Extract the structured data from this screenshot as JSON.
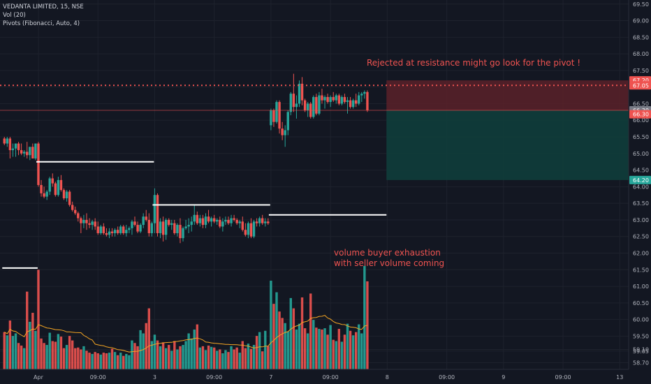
{
  "legend": {
    "symbol_line": "VEDANTA LIMITED, 15, NSE",
    "volume_line": "Vol (20)",
    "pivots_line": "Pivots (Fibonacci, Auto, 4)"
  },
  "annotations": [
    {
      "text": "Rejected at resistance might go look for the pivot !",
      "color": "#f05350"
    },
    {
      "text": "volume buyer exhaustion",
      "color": "#f05350"
    },
    {
      "text": "with seller volume coming",
      "color": "#f05350"
    }
  ],
  "colors": {
    "background": "#131722",
    "grid": "#1e222d",
    "up": "#26a69a",
    "down": "#ef5350",
    "ma": "#f5a623",
    "pivot": "#ffffff",
    "stop_zone": "#5b2129",
    "target_zone": "#0f3d3b"
  },
  "price_axis": {
    "min": 58.5,
    "max": 69.6,
    "ticks": [
      "69.50",
      "69.00",
      "68.50",
      "68.00",
      "67.50",
      "67.00",
      "66.50",
      "66.00",
      "65.50",
      "65.00",
      "64.50",
      "64.00",
      "63.50",
      "63.00",
      "62.50",
      "62.00",
      "61.50",
      "61.00",
      "60.50",
      "60.00",
      "59.50",
      "59.10",
      "59.05",
      "58.70"
    ],
    "badges": [
      {
        "label": "67.20",
        "value": 67.2,
        "color": "#ef5350"
      },
      {
        "label": "67.05",
        "value": 67.05,
        "color": "#ef5350"
      },
      {
        "label": "66.30",
        "value": 66.3,
        "color": "#787b86"
      },
      {
        "label": "66.30",
        "value": 66.18,
        "color": "#ef5350"
      },
      {
        "label": "64.20",
        "value": 64.2,
        "color": "#26a69a"
      }
    ]
  },
  "time_axis": {
    "labels": [
      {
        "label": "Apr",
        "bar": 12
      },
      {
        "label": "09:00",
        "bar": 33
      },
      {
        "label": "3",
        "bar": 53
      },
      {
        "label": "09:00",
        "bar": 74
      },
      {
        "label": "7",
        "bar": 94
      },
      {
        "label": "09:00",
        "bar": 115
      },
      {
        "label": "8",
        "bar": 135
      },
      {
        "label": "09:00",
        "bar": 156
      },
      {
        "label": "9",
        "bar": 176
      },
      {
        "label": "09:00",
        "bar": 197
      },
      {
        "label": "13",
        "bar": 217
      }
    ]
  },
  "chart_data": {
    "type": "candlestick",
    "title": "VEDANTA LIMITED, 15, NSE",
    "ylim": [
      58.5,
      69.6
    ],
    "resistance_line": 67.05,
    "current_price": 66.3,
    "pivot_levels": [
      {
        "value": 61.55,
        "from_bar": 0,
        "to_bar": 11
      },
      {
        "value": 64.75,
        "from_bar": 12,
        "to_bar": 52
      },
      {
        "value": 63.45,
        "from_bar": 53,
        "to_bar": 93
      },
      {
        "value": 63.15,
        "from_bar": 94,
        "to_bar": 134
      }
    ],
    "position": {
      "entry": 66.3,
      "stop": 67.2,
      "target": 64.2,
      "from_bar": 134,
      "to_bar": 221
    },
    "candles": [
      {
        "o": 65.45,
        "h": 65.5,
        "l": 65.25,
        "c": 65.3,
        "v": 58
      },
      {
        "o": 65.3,
        "h": 65.5,
        "l": 65.2,
        "c": 65.45,
        "v": 53
      },
      {
        "o": 65.45,
        "h": 65.5,
        "l": 64.85,
        "c": 65.1,
        "v": 76
      },
      {
        "o": 65.1,
        "h": 65.3,
        "l": 64.9,
        "c": 65.15,
        "v": 52
      },
      {
        "o": 65.15,
        "h": 65.3,
        "l": 64.9,
        "c": 65.3,
        "v": 56
      },
      {
        "o": 65.3,
        "h": 65.35,
        "l": 64.95,
        "c": 65.1,
        "v": 41
      },
      {
        "o": 65.1,
        "h": 65.3,
        "l": 64.95,
        "c": 65.0,
        "v": 37
      },
      {
        "o": 65.0,
        "h": 65.1,
        "l": 64.9,
        "c": 65.05,
        "v": 33
      },
      {
        "o": 65.05,
        "h": 65.35,
        "l": 64.85,
        "c": 64.95,
        "v": 121
      },
      {
        "o": 64.95,
        "h": 65.15,
        "l": 64.8,
        "c": 65.2,
        "v": 74
      },
      {
        "o": 65.2,
        "h": 65.3,
        "l": 64.85,
        "c": 64.85,
        "v": 88
      },
      {
        "o": 64.85,
        "h": 65.3,
        "l": 64.8,
        "c": 65.3,
        "v": 60
      },
      {
        "o": 65.3,
        "h": 65.35,
        "l": 64.0,
        "c": 64.05,
        "v": 155
      },
      {
        "o": 64.05,
        "h": 64.2,
        "l": 63.7,
        "c": 63.8,
        "v": 48
      },
      {
        "o": 63.8,
        "h": 64.0,
        "l": 63.65,
        "c": 63.7,
        "v": 41
      },
      {
        "o": 63.7,
        "h": 63.9,
        "l": 63.6,
        "c": 63.85,
        "v": 38
      },
      {
        "o": 63.85,
        "h": 64.3,
        "l": 63.75,
        "c": 64.25,
        "v": 57
      },
      {
        "o": 64.25,
        "h": 64.4,
        "l": 64.0,
        "c": 64.1,
        "v": 44
      },
      {
        "o": 64.1,
        "h": 64.15,
        "l": 63.7,
        "c": 63.75,
        "v": 43
      },
      {
        "o": 63.75,
        "h": 64.3,
        "l": 63.7,
        "c": 64.2,
        "v": 55
      },
      {
        "o": 64.2,
        "h": 64.35,
        "l": 63.85,
        "c": 63.9,
        "v": 51
      },
      {
        "o": 63.9,
        "h": 63.95,
        "l": 63.6,
        "c": 63.65,
        "v": 33
      },
      {
        "o": 63.65,
        "h": 63.9,
        "l": 63.55,
        "c": 63.85,
        "v": 38
      },
      {
        "o": 63.85,
        "h": 63.9,
        "l": 63.4,
        "c": 63.45,
        "v": 52
      },
      {
        "o": 63.45,
        "h": 63.55,
        "l": 63.25,
        "c": 63.3,
        "v": 45
      },
      {
        "o": 63.3,
        "h": 63.4,
        "l": 63.15,
        "c": 63.2,
        "v": 33
      },
      {
        "o": 63.2,
        "h": 63.25,
        "l": 62.95,
        "c": 63.05,
        "v": 34
      },
      {
        "o": 63.05,
        "h": 63.1,
        "l": 62.6,
        "c": 62.9,
        "v": 31
      },
      {
        "o": 62.9,
        "h": 63.15,
        "l": 62.75,
        "c": 63.0,
        "v": 36
      },
      {
        "o": 63.0,
        "h": 63.2,
        "l": 62.7,
        "c": 62.9,
        "v": 29
      },
      {
        "o": 62.9,
        "h": 63.05,
        "l": 62.75,
        "c": 62.85,
        "v": 26
      },
      {
        "o": 62.85,
        "h": 63.0,
        "l": 62.7,
        "c": 62.95,
        "v": 24
      },
      {
        "o": 62.95,
        "h": 63.05,
        "l": 62.7,
        "c": 62.8,
        "v": 27
      },
      {
        "o": 62.8,
        "h": 62.95,
        "l": 62.55,
        "c": 62.6,
        "v": 25
      },
      {
        "o": 62.6,
        "h": 62.85,
        "l": 62.55,
        "c": 62.8,
        "v": 23
      },
      {
        "o": 62.8,
        "h": 62.9,
        "l": 62.55,
        "c": 62.6,
        "v": 26
      },
      {
        "o": 62.6,
        "h": 62.75,
        "l": 62.5,
        "c": 62.55,
        "v": 25
      },
      {
        "o": 62.55,
        "h": 62.75,
        "l": 62.45,
        "c": 62.65,
        "v": 26
      },
      {
        "o": 62.65,
        "h": 62.75,
        "l": 62.5,
        "c": 62.6,
        "v": 32
      },
      {
        "o": 62.6,
        "h": 62.75,
        "l": 62.5,
        "c": 62.7,
        "v": 27
      },
      {
        "o": 62.7,
        "h": 62.8,
        "l": 62.55,
        "c": 62.6,
        "v": 22
      },
      {
        "o": 62.6,
        "h": 62.85,
        "l": 62.55,
        "c": 62.8,
        "v": 26
      },
      {
        "o": 62.8,
        "h": 62.85,
        "l": 62.55,
        "c": 62.6,
        "v": 21
      },
      {
        "o": 62.6,
        "h": 62.85,
        "l": 62.5,
        "c": 62.7,
        "v": 24
      },
      {
        "o": 62.7,
        "h": 62.8,
        "l": 62.6,
        "c": 62.75,
        "v": 22
      },
      {
        "o": 62.75,
        "h": 63.0,
        "l": 62.55,
        "c": 62.95,
        "v": 45
      },
      {
        "o": 62.95,
        "h": 63.1,
        "l": 62.8,
        "c": 62.85,
        "v": 41
      },
      {
        "o": 62.85,
        "h": 62.95,
        "l": 62.6,
        "c": 62.65,
        "v": 36
      },
      {
        "o": 62.65,
        "h": 62.9,
        "l": 62.6,
        "c": 62.85,
        "v": 61
      },
      {
        "o": 62.85,
        "h": 63.2,
        "l": 62.75,
        "c": 63.1,
        "v": 56
      },
      {
        "o": 63.1,
        "h": 63.3,
        "l": 62.95,
        "c": 63.0,
        "v": 72
      },
      {
        "o": 63.0,
        "h": 63.2,
        "l": 62.5,
        "c": 62.6,
        "v": 95
      },
      {
        "o": 62.6,
        "h": 62.95,
        "l": 62.5,
        "c": 62.9,
        "v": 44
      },
      {
        "o": 62.9,
        "h": 63.95,
        "l": 62.6,
        "c": 63.75,
        "v": 54
      },
      {
        "o": 63.75,
        "h": 63.8,
        "l": 62.5,
        "c": 62.6,
        "v": 45
      },
      {
        "o": 62.6,
        "h": 63.05,
        "l": 62.45,
        "c": 62.95,
        "v": 36
      },
      {
        "o": 62.95,
        "h": 63.1,
        "l": 62.35,
        "c": 62.55,
        "v": 42
      },
      {
        "o": 62.55,
        "h": 63.05,
        "l": 62.4,
        "c": 63.0,
        "v": 33
      },
      {
        "o": 63.0,
        "h": 63.05,
        "l": 62.8,
        "c": 62.85,
        "v": 38
      },
      {
        "o": 62.85,
        "h": 63.0,
        "l": 62.7,
        "c": 62.9,
        "v": 29
      },
      {
        "o": 62.9,
        "h": 63.0,
        "l": 62.55,
        "c": 62.6,
        "v": 44
      },
      {
        "o": 62.6,
        "h": 62.9,
        "l": 62.5,
        "c": 62.85,
        "v": 31
      },
      {
        "o": 62.85,
        "h": 63.05,
        "l": 62.3,
        "c": 62.45,
        "v": 36
      },
      {
        "o": 62.45,
        "h": 62.8,
        "l": 62.35,
        "c": 62.75,
        "v": 38
      },
      {
        "o": 62.75,
        "h": 63.0,
        "l": 62.7,
        "c": 62.8,
        "v": 44
      },
      {
        "o": 62.8,
        "h": 63.05,
        "l": 62.6,
        "c": 62.85,
        "v": 56
      },
      {
        "o": 62.85,
        "h": 63.1,
        "l": 62.65,
        "c": 62.95,
        "v": 48
      },
      {
        "o": 62.95,
        "h": 63.45,
        "l": 62.85,
        "c": 63.15,
        "v": 62
      },
      {
        "o": 63.15,
        "h": 63.25,
        "l": 62.85,
        "c": 62.9,
        "v": 70
      },
      {
        "o": 62.9,
        "h": 63.15,
        "l": 62.8,
        "c": 63.05,
        "v": 34
      },
      {
        "o": 63.05,
        "h": 63.15,
        "l": 62.75,
        "c": 62.85,
        "v": 36
      },
      {
        "o": 62.85,
        "h": 63.2,
        "l": 62.75,
        "c": 63.1,
        "v": 30
      },
      {
        "o": 63.1,
        "h": 63.3,
        "l": 62.9,
        "c": 62.95,
        "v": 37
      },
      {
        "o": 62.95,
        "h": 63.1,
        "l": 62.8,
        "c": 63.05,
        "v": 35
      },
      {
        "o": 63.05,
        "h": 63.15,
        "l": 62.9,
        "c": 62.95,
        "v": 34
      },
      {
        "o": 62.95,
        "h": 63.05,
        "l": 62.85,
        "c": 63.0,
        "v": 29
      },
      {
        "o": 63.0,
        "h": 63.1,
        "l": 62.75,
        "c": 62.8,
        "v": 31
      },
      {
        "o": 62.8,
        "h": 63.05,
        "l": 62.65,
        "c": 62.95,
        "v": 25
      },
      {
        "o": 62.95,
        "h": 63.1,
        "l": 62.85,
        "c": 63.0,
        "v": 30
      },
      {
        "o": 63.0,
        "h": 63.1,
        "l": 62.85,
        "c": 62.9,
        "v": 27
      },
      {
        "o": 62.9,
        "h": 63.15,
        "l": 62.8,
        "c": 63.05,
        "v": 36
      },
      {
        "o": 63.05,
        "h": 63.15,
        "l": 62.95,
        "c": 63.0,
        "v": 31
      },
      {
        "o": 63.0,
        "h": 63.05,
        "l": 62.85,
        "c": 62.9,
        "v": 34
      },
      {
        "o": 62.9,
        "h": 63.0,
        "l": 62.75,
        "c": 62.95,
        "v": 26
      },
      {
        "o": 62.95,
        "h": 63.1,
        "l": 62.65,
        "c": 62.7,
        "v": 44
      },
      {
        "o": 62.7,
        "h": 62.9,
        "l": 62.5,
        "c": 62.55,
        "v": 33
      },
      {
        "o": 62.55,
        "h": 62.95,
        "l": 62.45,
        "c": 62.9,
        "v": 40
      },
      {
        "o": 62.9,
        "h": 63.05,
        "l": 62.45,
        "c": 62.5,
        "v": 32
      },
      {
        "o": 62.5,
        "h": 63.0,
        "l": 62.45,
        "c": 62.95,
        "v": 38
      },
      {
        "o": 62.95,
        "h": 63.05,
        "l": 62.8,
        "c": 62.9,
        "v": 52
      },
      {
        "o": 62.9,
        "h": 63.1,
        "l": 62.8,
        "c": 63.05,
        "v": 58
      },
      {
        "o": 63.05,
        "h": 63.15,
        "l": 62.85,
        "c": 62.9,
        "v": 28
      },
      {
        "o": 62.9,
        "h": 63.05,
        "l": 62.8,
        "c": 62.95,
        "v": 60
      },
      {
        "o": 62.95,
        "h": 63.05,
        "l": 62.85,
        "c": 62.9,
        "v": 36
      },
      {
        "o": 65.85,
        "h": 66.35,
        "l": 65.7,
        "c": 66.3,
        "v": 138
      },
      {
        "o": 66.3,
        "h": 66.35,
        "l": 65.8,
        "c": 65.95,
        "v": 102
      },
      {
        "o": 65.95,
        "h": 66.6,
        "l": 65.9,
        "c": 66.55,
        "v": 120
      },
      {
        "o": 66.55,
        "h": 66.6,
        "l": 65.6,
        "c": 65.75,
        "v": 90
      },
      {
        "o": 65.75,
        "h": 65.95,
        "l": 65.4,
        "c": 65.55,
        "v": 80
      },
      {
        "o": 65.55,
        "h": 65.85,
        "l": 65.2,
        "c": 65.7,
        "v": 72
      },
      {
        "o": 65.7,
        "h": 66.3,
        "l": 65.55,
        "c": 66.25,
        "v": 59
      },
      {
        "o": 66.25,
        "h": 66.85,
        "l": 66.15,
        "c": 66.8,
        "v": 111
      },
      {
        "o": 66.8,
        "h": 67.4,
        "l": 66.25,
        "c": 66.4,
        "v": 95
      },
      {
        "o": 66.4,
        "h": 66.75,
        "l": 66.05,
        "c": 66.5,
        "v": 62
      },
      {
        "o": 66.5,
        "h": 67.2,
        "l": 66.4,
        "c": 67.1,
        "v": 71
      },
      {
        "o": 67.1,
        "h": 67.3,
        "l": 66.45,
        "c": 66.6,
        "v": 112
      },
      {
        "o": 66.6,
        "h": 66.65,
        "l": 66.25,
        "c": 66.3,
        "v": 64
      },
      {
        "o": 66.3,
        "h": 66.55,
        "l": 66.1,
        "c": 66.5,
        "v": 56
      },
      {
        "o": 66.5,
        "h": 66.55,
        "l": 66.05,
        "c": 66.1,
        "v": 118
      },
      {
        "o": 66.1,
        "h": 66.75,
        "l": 66.05,
        "c": 66.7,
        "v": 77
      },
      {
        "o": 66.7,
        "h": 66.8,
        "l": 66.15,
        "c": 66.2,
        "v": 65
      },
      {
        "o": 66.2,
        "h": 66.85,
        "l": 66.15,
        "c": 66.75,
        "v": 63
      },
      {
        "o": 66.75,
        "h": 66.95,
        "l": 66.5,
        "c": 66.6,
        "v": 62
      },
      {
        "o": 66.6,
        "h": 66.75,
        "l": 66.35,
        "c": 66.7,
        "v": 64
      },
      {
        "o": 66.7,
        "h": 66.8,
        "l": 66.5,
        "c": 66.55,
        "v": 54
      },
      {
        "o": 66.55,
        "h": 66.75,
        "l": 66.4,
        "c": 66.7,
        "v": 69
      },
      {
        "o": 66.7,
        "h": 66.85,
        "l": 66.55,
        "c": 66.6,
        "v": 46
      },
      {
        "o": 66.6,
        "h": 66.8,
        "l": 66.5,
        "c": 66.75,
        "v": 44
      },
      {
        "o": 66.75,
        "h": 66.8,
        "l": 66.45,
        "c": 66.5,
        "v": 63
      },
      {
        "o": 66.5,
        "h": 66.75,
        "l": 66.45,
        "c": 66.7,
        "v": 43
      },
      {
        "o": 66.7,
        "h": 66.8,
        "l": 66.5,
        "c": 66.55,
        "v": 54
      },
      {
        "o": 66.55,
        "h": 66.7,
        "l": 66.2,
        "c": 66.6,
        "v": 71
      },
      {
        "o": 66.6,
        "h": 66.7,
        "l": 66.35,
        "c": 66.4,
        "v": 60
      },
      {
        "o": 66.4,
        "h": 66.65,
        "l": 66.35,
        "c": 66.6,
        "v": 53
      },
      {
        "o": 66.6,
        "h": 66.8,
        "l": 66.4,
        "c": 66.5,
        "v": 58
      },
      {
        "o": 66.5,
        "h": 66.85,
        "l": 66.45,
        "c": 66.75,
        "v": 70
      },
      {
        "o": 66.75,
        "h": 66.85,
        "l": 66.55,
        "c": 66.8,
        "v": 56
      },
      {
        "o": 66.8,
        "h": 66.9,
        "l": 66.65,
        "c": 66.85,
        "v": 161
      },
      {
        "o": 66.85,
        "h": 66.9,
        "l": 66.25,
        "c": 66.3,
        "v": 137
      }
    ]
  }
}
